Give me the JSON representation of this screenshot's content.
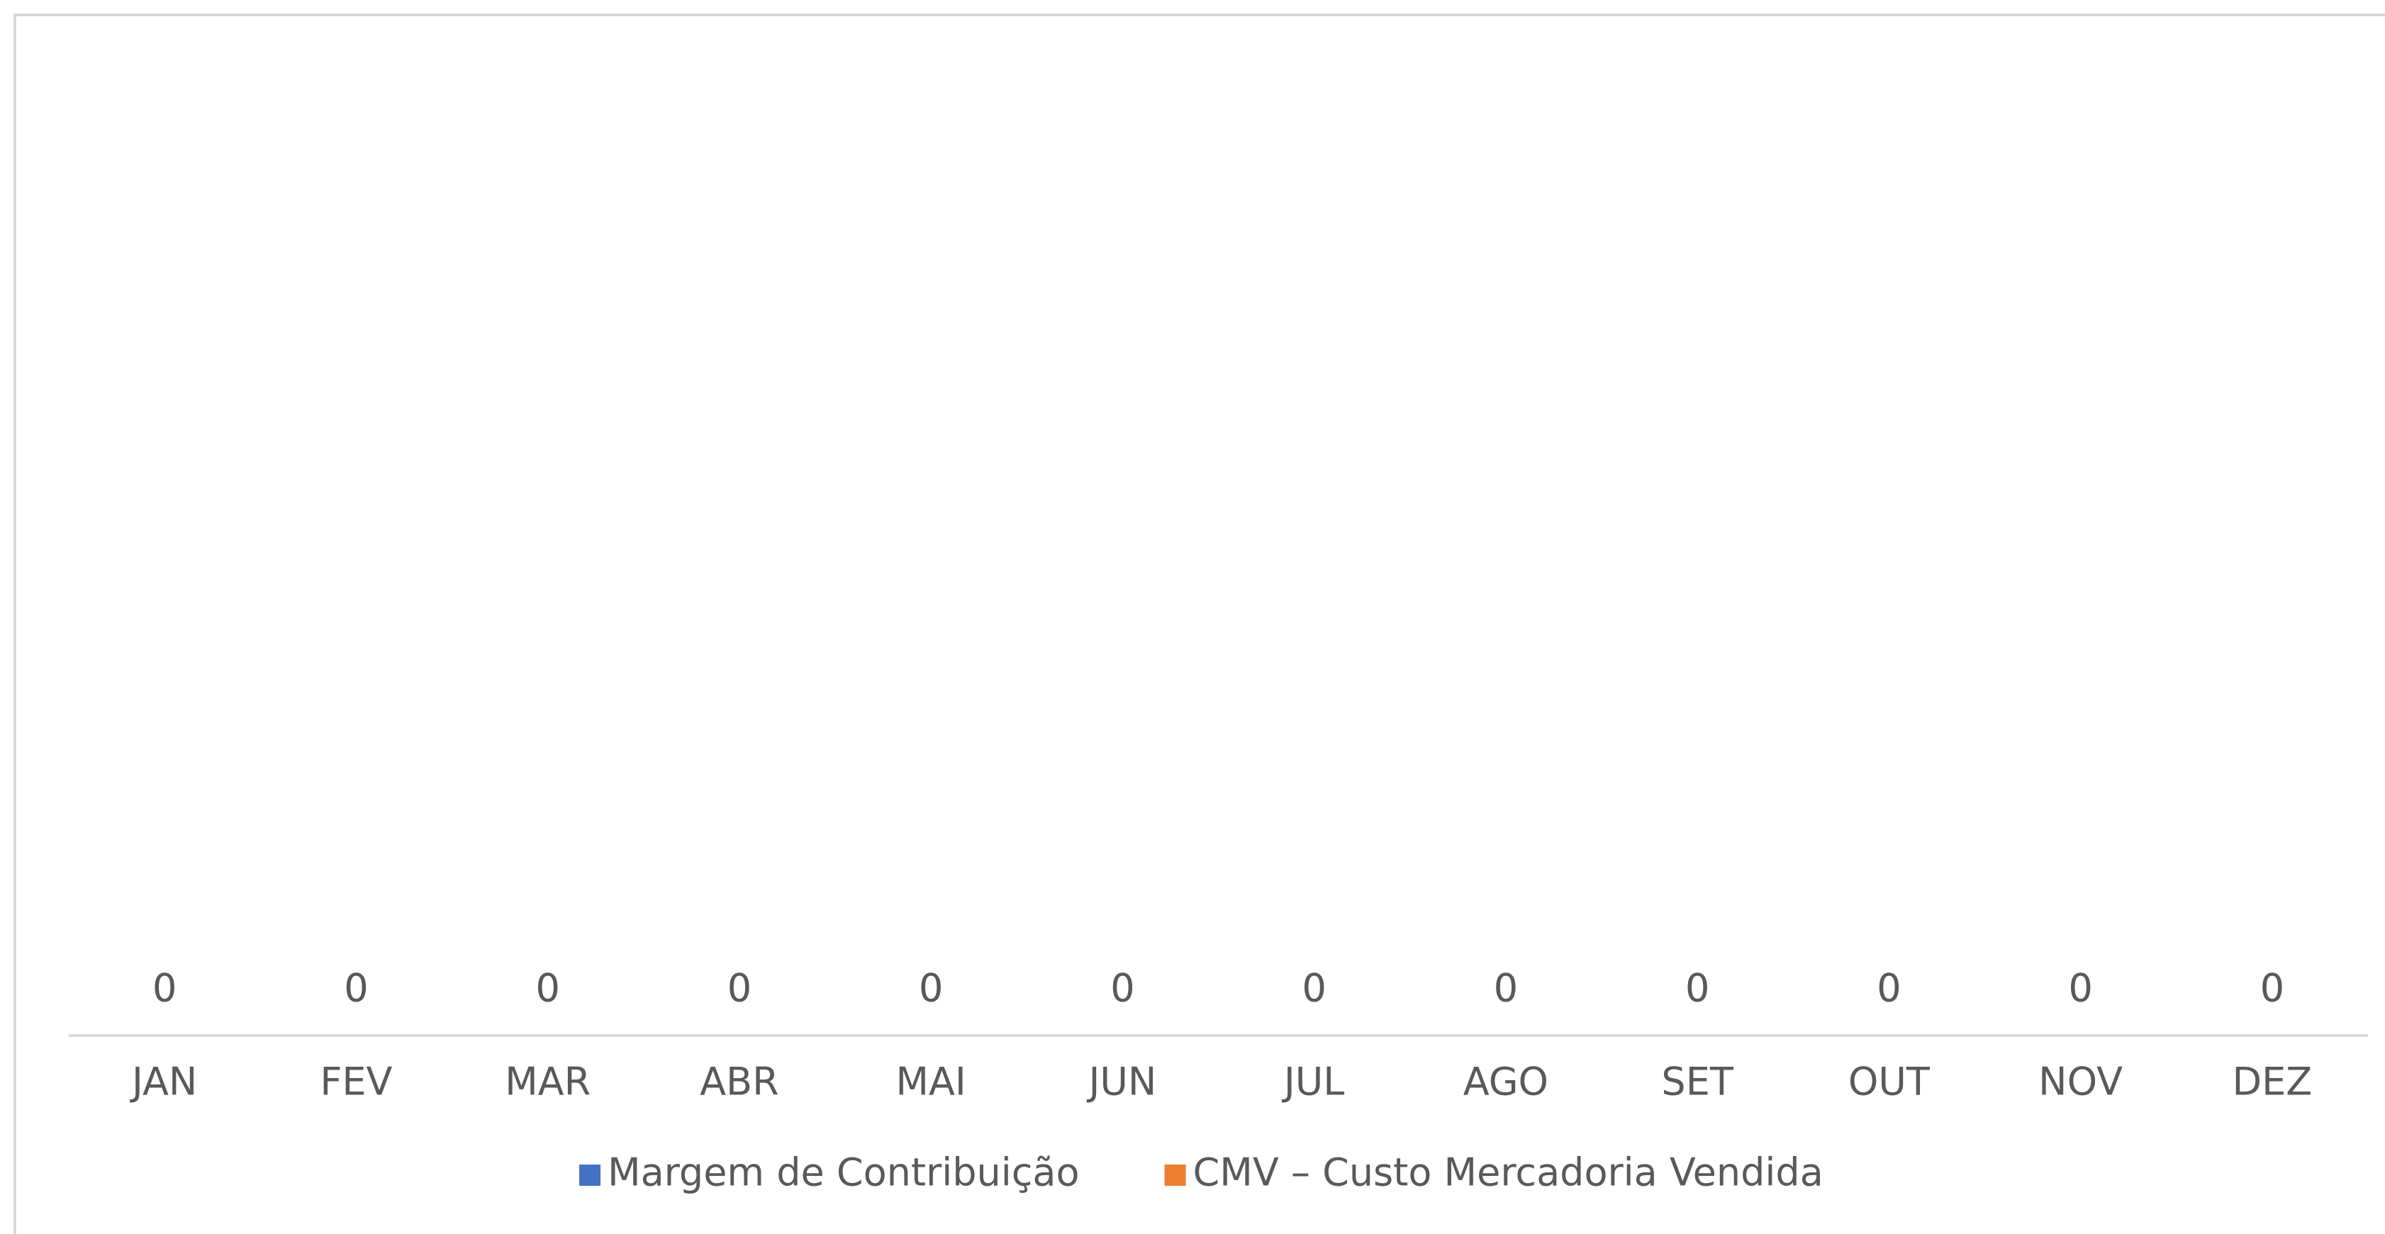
{
  "chart_data": {
    "type": "bar",
    "stacked": true,
    "categories": [
      "JAN",
      "FEV",
      "MAR",
      "ABR",
      "MAI",
      "JUN",
      "JUL",
      "AGO",
      "SET",
      "OUT",
      "NOV",
      "DEZ"
    ],
    "series": [
      {
        "name": "Margem de Contribuição",
        "color": "#4472c4",
        "values": [
          0,
          0,
          0,
          0,
          0,
          0,
          0,
          0,
          0,
          0,
          0,
          0
        ]
      },
      {
        "name": "CMV – Custo Mercadoria Vendida",
        "color": "#ed7d31",
        "values": [
          0,
          0,
          0,
          0,
          0,
          0,
          0,
          0,
          0,
          0,
          0,
          0
        ]
      }
    ],
    "data_labels": true,
    "legend": "bottom"
  }
}
